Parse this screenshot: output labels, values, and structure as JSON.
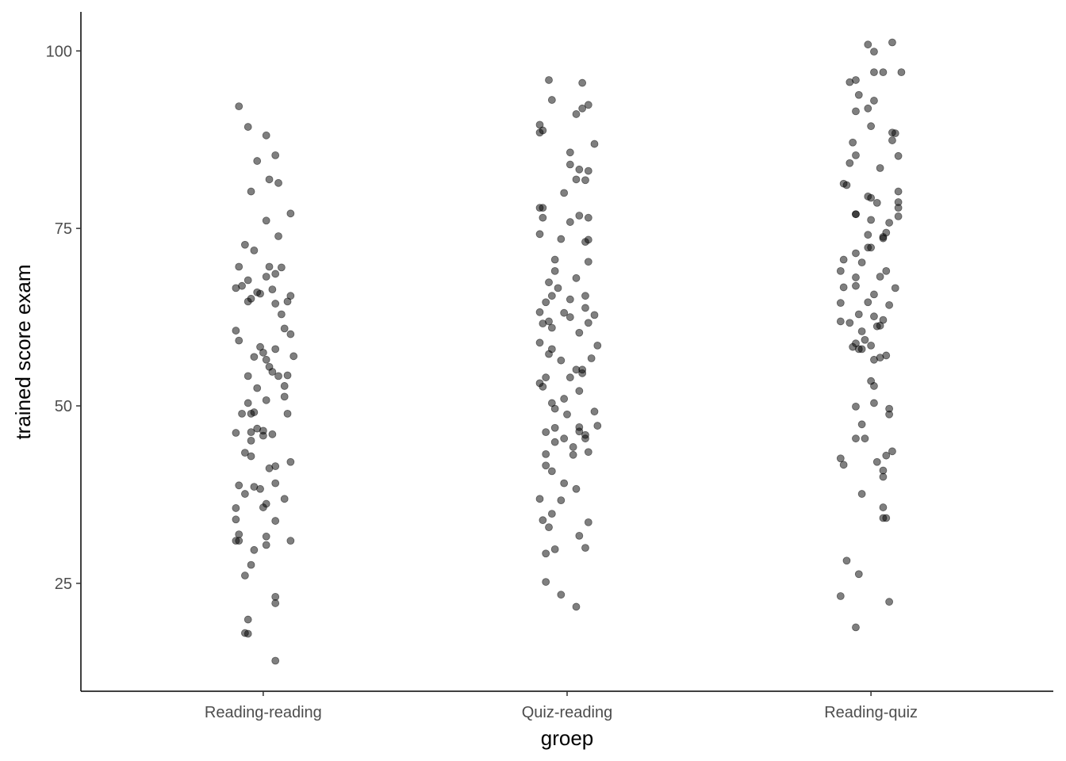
{
  "chart_data": {
    "type": "scatter",
    "x_label": "groep",
    "y_label": "trained score exam",
    "xlim": [
      0.4,
      3.6
    ],
    "ylim": [
      9.8,
      105.5
    ],
    "xticks": [
      {
        "value": 1,
        "label": "Reading-reading"
      },
      {
        "value": 2,
        "label": "Quiz-reading"
      },
      {
        "value": 3,
        "label": "Reading-quiz"
      }
    ],
    "yticks": [
      25,
      50,
      75,
      100
    ],
    "color": "#000000",
    "opacity": 0.5,
    "grid": false,
    "x": [
      0.92,
      0.95,
      1.01,
      1.04,
      0.98,
      1.02,
      1.05,
      0.96,
      1.09,
      1.01,
      1.05,
      0.94,
      0.97,
      0.92,
      1.02,
      1.06,
      1.04,
      1.01,
      0.95,
      0.91,
      0.93,
      1.03,
      0.98,
      0.99,
      1.09,
      0.96,
      0.95,
      1.08,
      1.04,
      1.06,
      0.91,
      1.07,
      1.09,
      0.92,
      0.99,
      1.0,
      1.04,
      1.1,
      0.97,
      1.01,
      1.02,
      1.03,
      1.05,
      1.08,
      0.95,
      1.07,
      0.98,
      1.07,
      1.01,
      0.95,
      0.93,
      0.96,
      0.97,
      1.08,
      0.98,
      1.0,
      0.91,
      0.96,
      1.03,
      0.96,
      1.0,
      0.94,
      0.96,
      1.09,
      1.04,
      1.02,
      1.04,
      0.92,
      0.97,
      0.99,
      1.07,
      0.94,
      1.01,
      1.0,
      0.91,
      0.91,
      1.04,
      0.92,
      1.01,
      0.91,
      0.92,
      1.09,
      1.01,
      0.97,
      0.96,
      0.94,
      1.04,
      1.04,
      0.95,
      0.94,
      0.95,
      1.04,
      1.94,
      2.05,
      1.95,
      2.07,
      2.05,
      2.03,
      1.91,
      1.92,
      1.91,
      2.09,
      2.01,
      2.01,
      2.04,
      2.07,
      2.03,
      2.06,
      1.99,
      1.91,
      1.92,
      2.04,
      2.07,
      1.92,
      2.01,
      1.91,
      1.98,
      2.07,
      2.06,
      1.96,
      2.07,
      1.96,
      1.94,
      2.03,
      1.97,
      2.06,
      1.93,
      2.01,
      1.95,
      2.06,
      1.91,
      1.99,
      2.09,
      2.01,
      1.94,
      1.92,
      2.07,
      1.95,
      2.04,
      1.91,
      2.1,
      1.95,
      1.94,
      2.08,
      1.98,
      2.03,
      2.05,
      2.05,
      1.93,
      2.01,
      1.91,
      1.92,
      2.04,
      1.99,
      1.95,
      1.96,
      2.09,
      2.0,
      2.1,
      2.04,
      1.96,
      2.04,
      2.06,
      1.99,
      2.06,
      1.93,
      1.96,
      2.02,
      2.07,
      1.93,
      2.02,
      1.93,
      1.95,
      1.99,
      2.03,
      1.91,
      1.98,
      1.95,
      1.92,
      2.07,
      1.94,
      2.04,
      1.96,
      1.93,
      2.06,
      1.93,
      1.98,
      2.03,
      2.99,
      3.07,
      3.01,
      3.1,
      3.01,
      3.04,
      2.95,
      2.93,
      2.96,
      3.01,
      2.99,
      2.95,
      3.0,
      3.07,
      3.08,
      3.07,
      2.94,
      2.95,
      3.09,
      2.93,
      3.03,
      2.91,
      2.92,
      3.09,
      2.99,
      3.0,
      3.02,
      3.09,
      3.09,
      2.95,
      2.95,
      3.09,
      3.0,
      3.06,
      3.05,
      2.99,
      3.04,
      3.04,
      2.99,
      3.0,
      2.95,
      2.91,
      2.97,
      2.9,
      3.05,
      2.95,
      3.03,
      2.91,
      2.95,
      3.08,
      3.01,
      2.99,
      3.06,
      2.9,
      2.96,
      3.01,
      3.04,
      2.9,
      2.93,
      3.02,
      3.03,
      2.97,
      2.98,
      2.95,
      2.96,
      2.94,
      2.97,
      3.0,
      3.05,
      3.03,
      3.01,
      3.0,
      3.01,
      3.01,
      2.95,
      3.06,
      3.06,
      2.97,
      2.95,
      2.98,
      3.07,
      3.05,
      2.9,
      3.02,
      2.91,
      3.04,
      3.04,
      2.97,
      3.04,
      3.04,
      3.05,
      2.92,
      2.96,
      2.9,
      3.06,
      2.95
    ],
    "y": [
      92.2,
      89.3,
      88.1,
      85.3,
      84.5,
      81.9,
      81.4,
      80.2,
      77.1,
      76.1,
      73.9,
      72.7,
      71.9,
      69.6,
      69.6,
      69.5,
      68.6,
      68.2,
      67.7,
      66.6,
      66.9,
      66.4,
      66.0,
      65.8,
      65.5,
      65.1,
      64.7,
      64.7,
      64.4,
      62.9,
      60.6,
      60.9,
      60.1,
      59.2,
      58.3,
      57.5,
      58.0,
      57.0,
      56.9,
      56.5,
      55.5,
      54.8,
      54.2,
      54.3,
      54.2,
      52.8,
      52.5,
      51.3,
      50.8,
      50.4,
      48.9,
      48.9,
      49.1,
      48.9,
      46.8,
      46.5,
      46.2,
      46.3,
      46.0,
      45.1,
      45.8,
      43.4,
      42.9,
      42.1,
      41.5,
      41.2,
      39.1,
      38.8,
      38.6,
      38.3,
      36.9,
      37.6,
      36.2,
      35.7,
      35.6,
      34.0,
      33.8,
      31.9,
      31.6,
      31.0,
      31.0,
      31.0,
      30.4,
      29.7,
      27.6,
      26.1,
      23.1,
      22.2,
      19.9,
      18.0,
      17.9,
      14.1,
      95.9,
      95.5,
      93.1,
      92.4,
      91.9,
      91.1,
      89.6,
      88.8,
      88.5,
      86.9,
      85.7,
      84.0,
      83.3,
      83.1,
      81.9,
      81.8,
      80.0,
      77.9,
      77.9,
      76.8,
      76.5,
      76.5,
      75.9,
      74.2,
      73.5,
      73.4,
      73.1,
      70.6,
      70.3,
      69.0,
      67.4,
      68.0,
      66.6,
      65.5,
      64.6,
      65.0,
      65.5,
      63.8,
      63.2,
      63.1,
      62.8,
      62.5,
      61.9,
      61.6,
      61.7,
      61.0,
      60.3,
      58.9,
      58.5,
      58.0,
      57.3,
      56.7,
      56.4,
      55.1,
      55.1,
      54.6,
      54.0,
      54.0,
      53.2,
      52.7,
      52.1,
      51.0,
      50.4,
      49.6,
      49.2,
      48.8,
      47.2,
      47.0,
      46.9,
      46.4,
      45.9,
      45.4,
      45.4,
      46.3,
      44.9,
      44.2,
      43.5,
      43.2,
      43.1,
      41.6,
      40.8,
      39.1,
      38.3,
      36.9,
      36.7,
      34.8,
      33.9,
      33.6,
      32.9,
      31.7,
      29.8,
      29.2,
      30.0,
      25.2,
      23.4,
      21.7,
      100.9,
      101.2,
      99.9,
      97.0,
      97.0,
      97.0,
      95.9,
      95.6,
      93.8,
      93.0,
      91.9,
      91.5,
      89.4,
      88.5,
      88.4,
      87.4,
      87.1,
      85.3,
      85.2,
      84.2,
      83.5,
      81.3,
      81.1,
      80.2,
      79.5,
      79.3,
      78.6,
      78.7,
      77.9,
      77.0,
      77.0,
      76.7,
      76.2,
      75.8,
      74.4,
      74.1,
      73.8,
      73.6,
      72.3,
      72.3,
      71.5,
      70.6,
      70.2,
      69.0,
      69.0,
      68.1,
      68.2,
      66.7,
      66.9,
      66.6,
      65.7,
      64.6,
      64.2,
      64.5,
      62.9,
      62.6,
      62.1,
      61.9,
      61.7,
      61.2,
      61.3,
      60.5,
      59.3,
      58.8,
      58.0,
      58.3,
      58.0,
      58.5,
      57.1,
      56.8,
      56.5,
      53.5,
      52.8,
      50.4,
      49.9,
      49.6,
      48.8,
      47.4,
      45.4,
      45.4,
      43.6,
      43.0,
      42.6,
      42.1,
      41.7,
      40.9,
      40.0,
      37.6,
      35.7,
      34.2,
      34.2,
      28.2,
      26.3,
      23.2,
      22.4,
      18.8
    ]
  }
}
